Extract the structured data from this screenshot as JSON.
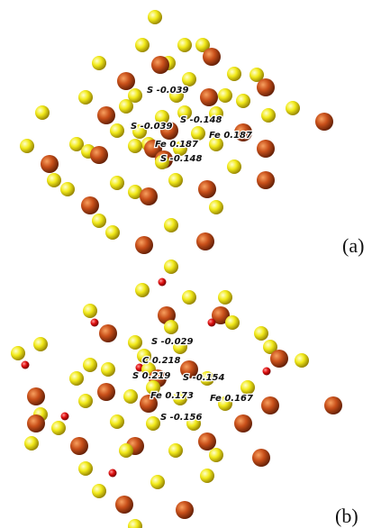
{
  "panels": [
    {
      "panel_label": "(a)",
      "atom_labels": [
        "S -0.039",
        "S -0.039",
        "S -0.148",
        "Fe 0.187",
        "Fe 0.187",
        "S -0.148"
      ]
    },
    {
      "panel_label": "(b)",
      "atom_labels": [
        "S -0.029",
        "C 0.218",
        "S 0.219",
        "S -0.154",
        "Fe 0.173",
        "Fe 0.167",
        "S -0.156"
      ]
    }
  ]
}
